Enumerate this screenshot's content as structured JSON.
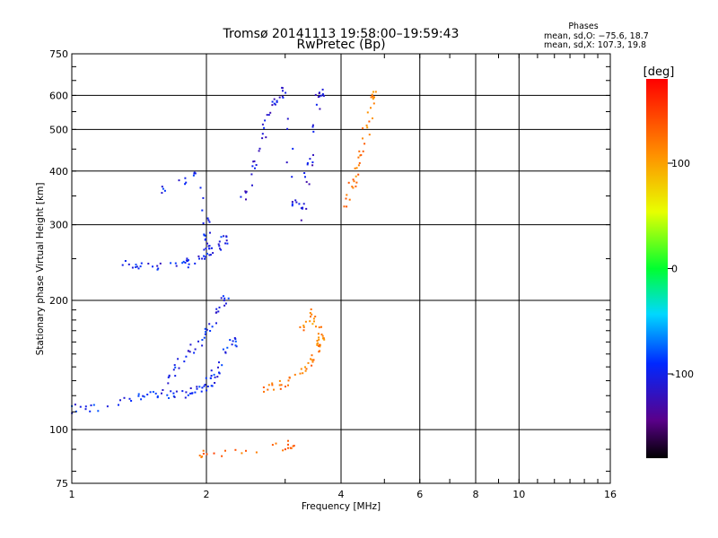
{
  "chart_data": {
    "type": "scatter",
    "title": "Tromsø 20141113 19:58:00–19:59:43",
    "subtitle": "RwPretec (Bp)",
    "xlabel": "Frequency [MHz]",
    "ylabel": "Stationary phase Virtual Height [km]",
    "x_scale": "log",
    "y_scale": "log",
    "xlim": [
      1,
      16
    ],
    "ylim": [
      75,
      750
    ],
    "x_ticks": [
      1,
      2,
      4,
      6,
      8,
      10,
      16
    ],
    "x_ticklabels": [
      "1",
      "2",
      "4",
      "6",
      "8",
      "10",
      "16"
    ],
    "y_ticks": [
      75,
      100,
      200,
      300,
      400,
      500,
      600,
      750
    ],
    "y_ticklabels": [
      "75",
      "100",
      "200",
      "300",
      "400",
      "500",
      "600",
      "750"
    ],
    "grid": true,
    "phases": {
      "title": "Phases",
      "line1": "mean, sd,O: −75.6, 18.7",
      "line2": "mean, sd,X: 107.3, 19.8"
    },
    "colorbar": {
      "label": "[deg]",
      "range": [
        -180,
        180
      ],
      "ticks": [
        100,
        0,
        -100
      ],
      "ticklabels": [
        "100",
        "0",
        "-100"
      ]
    },
    "series": [
      {
        "trace": "O-low",
        "points": [
          [
            1.0,
            112
          ],
          [
            1.05,
            111
          ],
          [
            1.2,
            113
          ],
          [
            1.4,
            120
          ],
          [
            1.5,
            121
          ],
          [
            1.6,
            122
          ],
          [
            1.7,
            121
          ],
          [
            1.8,
            122
          ],
          [
            1.9,
            124
          ],
          [
            2.0,
            126
          ],
          [
            2.05,
            130
          ],
          [
            2.1,
            135
          ],
          [
            2.2,
            150
          ],
          [
            2.3,
            160
          ]
        ],
        "phase": -95
      },
      {
        "trace": "O-E2",
        "points": [
          [
            1.6,
            128
          ],
          [
            1.7,
            138
          ],
          [
            1.8,
            148
          ],
          [
            1.9,
            158
          ],
          [
            2.0,
            170
          ],
          [
            2.1,
            180
          ],
          [
            2.2,
            200
          ]
        ],
        "phase": -100
      },
      {
        "trace": "O-Fa",
        "points": [
          [
            1.3,
            245
          ],
          [
            1.4,
            240
          ],
          [
            1.5,
            238
          ],
          [
            1.7,
            240
          ],
          [
            1.8,
            244
          ],
          [
            1.9,
            250
          ],
          [
            2.0,
            258
          ],
          [
            2.1,
            265
          ],
          [
            2.2,
            278
          ]
        ],
        "phase": -100
      },
      {
        "trace": "O-Fb",
        "points": [
          [
            1.55,
            355
          ],
          [
            1.8,
            385
          ],
          [
            1.9,
            390
          ],
          [
            2.0,
            300
          ],
          [
            2.0,
            270
          ]
        ],
        "phase": -95
      },
      {
        "trace": "O-F2",
        "points": [
          [
            2.4,
            340
          ],
          [
            2.5,
            380
          ],
          [
            2.6,
            430
          ],
          [
            2.7,
            500
          ],
          [
            2.8,
            560
          ],
          [
            2.9,
            600
          ],
          [
            3.0,
            640
          ],
          [
            3.1,
            350
          ],
          [
            3.2,
            310
          ],
          [
            3.3,
            330
          ],
          [
            3.4,
            420
          ],
          [
            3.5,
            520
          ],
          [
            3.6,
            610
          ]
        ],
        "phase": -110
      },
      {
        "trace": "X-E",
        "points": [
          [
            2.6,
            125
          ],
          [
            2.8,
            126
          ],
          [
            3.0,
            128
          ],
          [
            3.2,
            133
          ],
          [
            3.4,
            142
          ],
          [
            3.5,
            152
          ],
          [
            3.6,
            160
          ]
        ],
        "phase": 120
      },
      {
        "trace": "X-F1",
        "points": [
          [
            3.3,
            170
          ],
          [
            3.4,
            180
          ],
          [
            3.5,
            190
          ],
          [
            3.6,
            165
          ]
        ],
        "phase": 115
      },
      {
        "trace": "X-F2",
        "points": [
          [
            4.1,
            330
          ],
          [
            4.2,
            360
          ],
          [
            4.3,
            390
          ],
          [
            4.4,
            420
          ],
          [
            4.5,
            460
          ],
          [
            4.6,
            520
          ],
          [
            4.7,
            600
          ]
        ],
        "phase": 120
      },
      {
        "trace": "Es",
        "points": [
          [
            1.9,
            88
          ],
          [
            2.0,
            88
          ],
          [
            2.5,
            90
          ],
          [
            3.1,
            92
          ]
        ],
        "phase": 130
      }
    ]
  }
}
